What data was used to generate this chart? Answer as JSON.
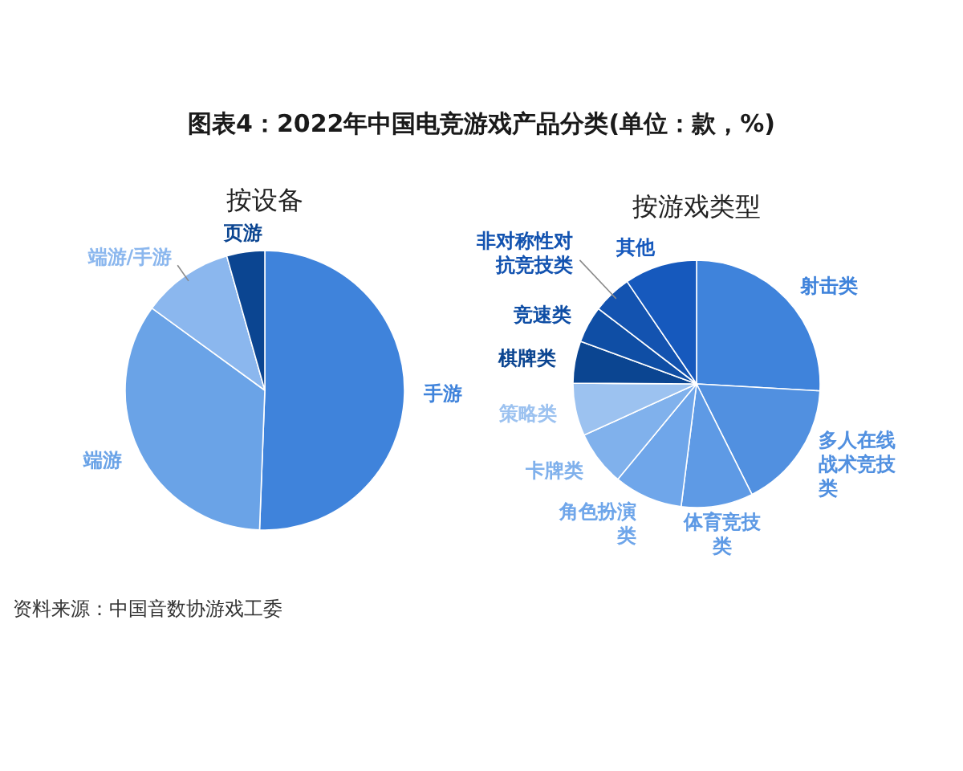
{
  "chart_data": [
    {
      "type": "pie",
      "title": "图表4：2022年中国电竞游戏产品分类(单位：款，%)",
      "subtitle": "按设备",
      "categories": [
        "手游",
        "端游",
        "端游/手游",
        "页游"
      ],
      "values": [
        50.6,
        34.4,
        10.6,
        4.4
      ],
      "colors": [
        "#3f83db",
        "#6aa3e7",
        "#8bb7ee",
        "#0b4591"
      ],
      "annotations": [
        "资料来源：中国音数协游戏工委"
      ]
    },
    {
      "type": "pie",
      "subtitle": "按游戏类型",
      "categories": [
        "射击类",
        "多人在线战术竞技类",
        "体育竞技类",
        "角色扮演类",
        "卡牌类",
        "策略类",
        "棋牌类",
        "竞速类",
        "非对称性对抗竞技类",
        "其他"
      ],
      "values": [
        25.9,
        16.7,
        9.4,
        9.0,
        7.2,
        6.9,
        5.5,
        4.8,
        5.1,
        9.5
      ],
      "colors": [
        "#3f83db",
        "#5190e0",
        "#5e9ae5",
        "#6fa6ea",
        "#80b1ec",
        "#9cc2f0",
        "#0b4591",
        "#0f4ea5",
        "#1353b0",
        "#1659bd"
      ]
    }
  ]
}
